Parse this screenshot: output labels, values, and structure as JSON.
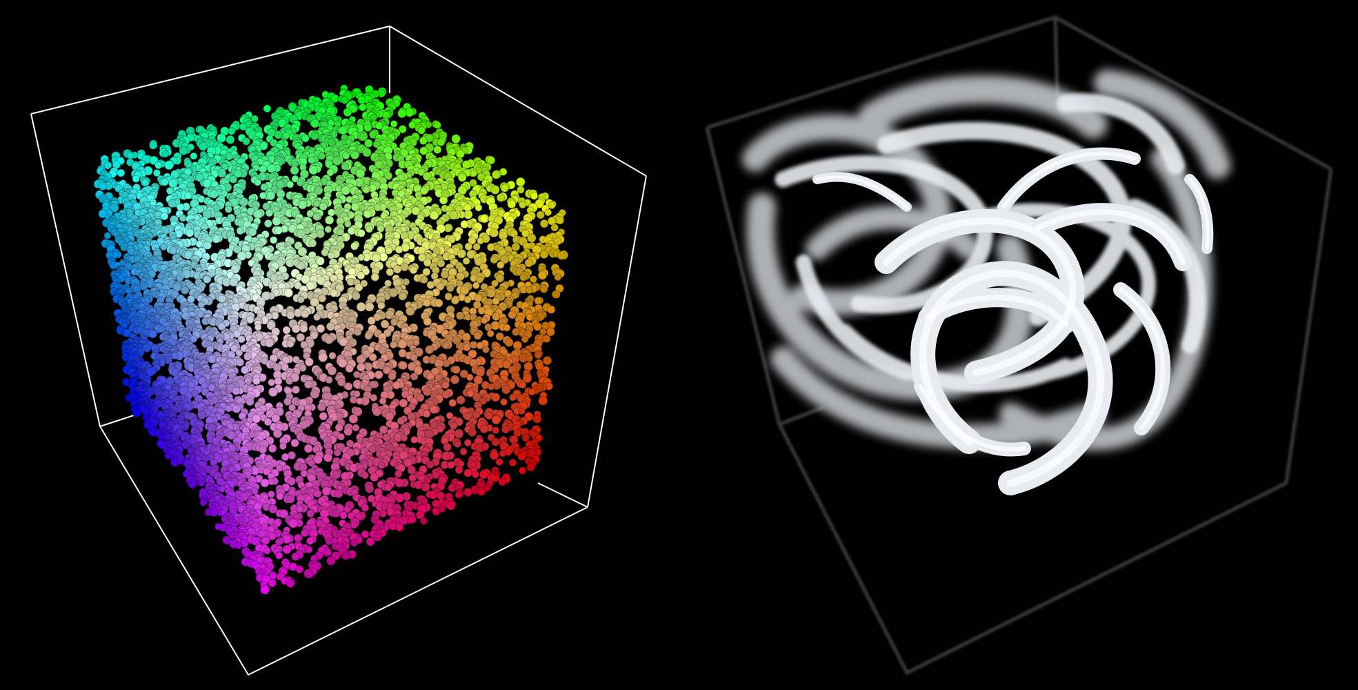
{
  "scene": {
    "background": "#000000",
    "panels": [
      {
        "name": "rgb-color-cube-point-cloud",
        "kind": "3d-scatter",
        "box_color": "#ffffff",
        "colors": {
          "corner_top": "#00ff00",
          "corner_left": "#00ffff",
          "corner_right": "#ffff00",
          "corner_mid": "#ffffff",
          "corner_lower_left": "#0000ff",
          "corner_lower_right": "#ff0000",
          "corner_bottom": "#ff00ff"
        }
      },
      {
        "name": "streamline-tubes-volume",
        "kind": "3d-tubes",
        "box_color": "#3a3a3a",
        "tube_color": "#e8ebf0"
      }
    ]
  }
}
